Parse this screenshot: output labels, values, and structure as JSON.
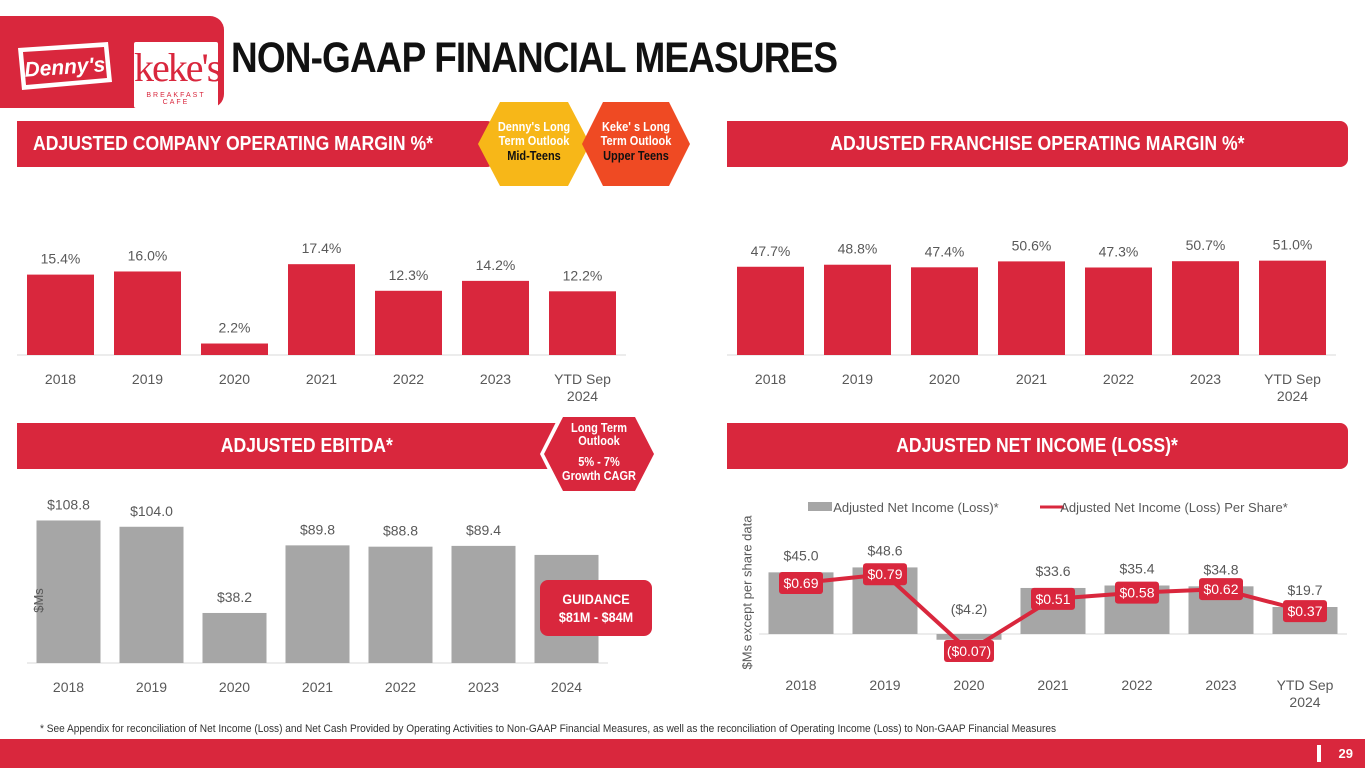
{
  "page": {
    "title": "NON-GAAP FINANCIAL MEASURES",
    "page_number": "29",
    "footnote": "* See Appendix for reconciliation of Net Income (Loss) and Net Cash Provided by Operating Activities to Non-GAAP Financial Measures, as well as the reconciliation of Operating Income (Loss) to Non-GAAP Financial Measures"
  },
  "logos": {
    "dennys": "Denny's",
    "kekes": "keke's",
    "kekes_sub": "BREAKFAST CAFE"
  },
  "sections": {
    "company_margin": "ADJUSTED COMPANY OPERATING MARGIN %*",
    "franchise_margin": "ADJUSTED FRANCHISE OPERATING MARGIN %*",
    "ebitda": "ADJUSTED EBITDA*",
    "net_income": "ADJUSTED NET INCOME (LOSS)*"
  },
  "badges": {
    "dennys_outlook": {
      "line1": "Denny's Long",
      "line2": "Term Outlook",
      "line3": "Mid-Teens"
    },
    "kekes_outlook": {
      "line1": "Keke' s Long",
      "line2": "Term Outlook",
      "line3": "Upper Teens"
    },
    "ebitda_outlook": {
      "line1": "Long Term",
      "line2": "Outlook",
      "line3": "5% - 7%",
      "line4": "Growth CAGR"
    },
    "guidance": {
      "line1": "GUIDANCE",
      "line2": "$81M - $84M"
    }
  },
  "colors": {
    "brand_red": "#d9273d",
    "bar_gray": "#a6a6a6",
    "axis": "#d9d9d9",
    "label": "#595959",
    "hex_yellow": "#f7b718",
    "hex_orange": "#ef4a23"
  },
  "chart_data": [
    {
      "id": "company_margin",
      "type": "bar",
      "categories": [
        "2018",
        "2019",
        "2020",
        "2021",
        "2022",
        "2023",
        "YTD Sep\n2024"
      ],
      "values": [
        15.4,
        16.0,
        2.2,
        17.4,
        12.3,
        14.2,
        12.2
      ],
      "labels": [
        "15.4%",
        "16.0%",
        "2.2%",
        "17.4%",
        "12.3%",
        "14.2%",
        "12.2%"
      ],
      "ylim": [
        0,
        20
      ]
    },
    {
      "id": "franchise_margin",
      "type": "bar",
      "categories": [
        "2018",
        "2019",
        "2020",
        "2021",
        "2022",
        "2023",
        "YTD Sep\n2024"
      ],
      "values": [
        47.7,
        48.8,
        47.4,
        50.6,
        47.3,
        50.7,
        51.0
      ],
      "labels": [
        "47.7%",
        "48.8%",
        "47.4%",
        "50.6%",
        "47.3%",
        "50.7%",
        "51.0%"
      ],
      "ylim": [
        0,
        60
      ]
    },
    {
      "id": "ebitda",
      "type": "bar",
      "ylabel": "$Ms",
      "categories": [
        "2018",
        "2019",
        "2020",
        "2021",
        "2022",
        "2023",
        "2024"
      ],
      "values": [
        108.8,
        104.0,
        38.2,
        89.8,
        88.8,
        89.4,
        82.5
      ],
      "labels": [
        "$108.8",
        "$104.0",
        "$38.2",
        "$89.8",
        "$88.8",
        "$89.4",
        ""
      ],
      "ylim": [
        0,
        120
      ]
    },
    {
      "id": "net_income",
      "type": "bar+line",
      "ylabel": "$Ms except per share data",
      "categories": [
        "2018",
        "2019",
        "2020",
        "2021",
        "2022",
        "2023",
        "YTD Sep\n2024"
      ],
      "series": [
        {
          "name": "Adjusted Net Income (Loss)*",
          "type": "bar",
          "values": [
            45.0,
            48.6,
            -4.2,
            33.6,
            35.4,
            34.8,
            19.7
          ],
          "labels": [
            "$45.0",
            "$48.6",
            "($4.2)",
            "$33.6",
            "$35.4",
            "$34.8",
            "$19.7"
          ]
        },
        {
          "name": "Adjusted Net Income (Loss) Per Share*",
          "type": "line",
          "values": [
            0.69,
            0.79,
            -0.07,
            0.51,
            0.58,
            0.62,
            0.37
          ],
          "labels": [
            "$0.69",
            "$0.79",
            "($0.07)",
            "$0.51",
            "$0.58",
            "$0.62",
            "$0.37"
          ]
        }
      ]
    }
  ]
}
